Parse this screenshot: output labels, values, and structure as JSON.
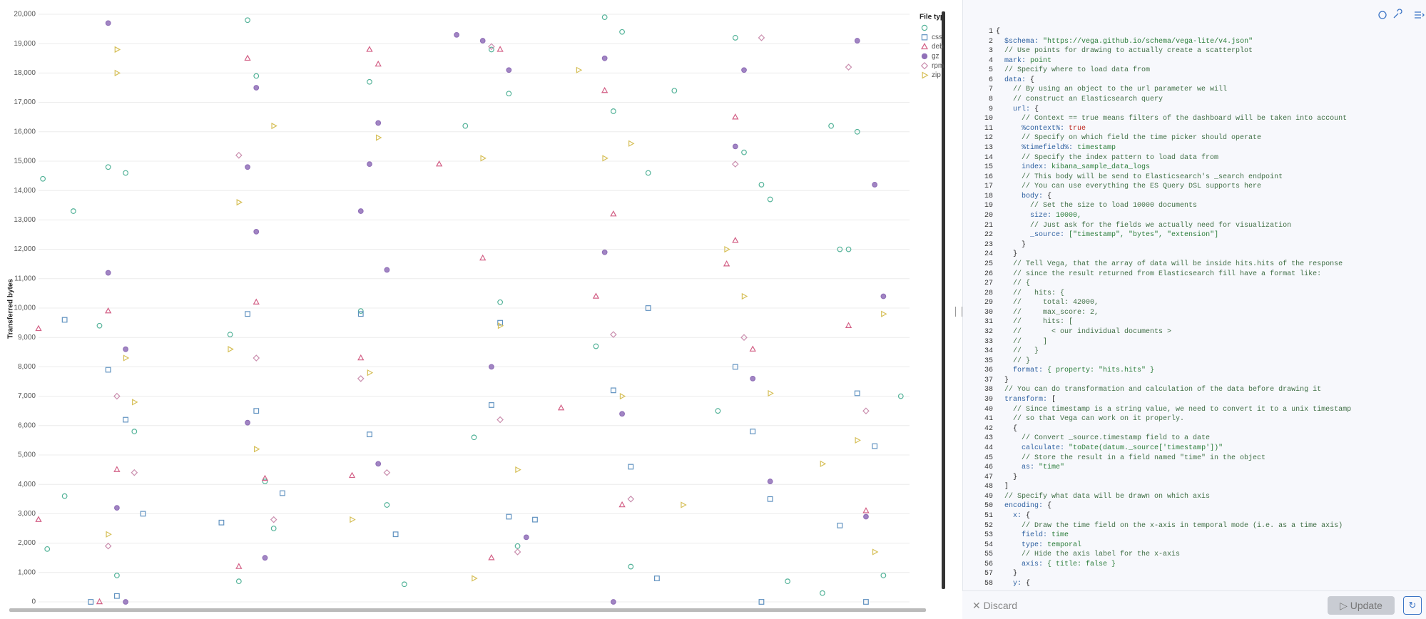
{
  "chart_data": {
    "type": "scatter",
    "y_label": "Transferred bytes",
    "legend_title": "File typ",
    "legend_position": "top-right",
    "grid": true,
    "xlim": [
      0,
      100
    ],
    "ylim": [
      0,
      20000
    ],
    "yticks": [
      0,
      {
        "value": 1000,
        "label": "1,000"
      },
      {
        "value": 2000,
        "label": "2,000"
      },
      {
        "value": 3000,
        "label": "3,000"
      },
      {
        "value": 4000,
        "label": "4,000"
      },
      {
        "value": 5000,
        "label": "5,000"
      },
      {
        "value": 6000,
        "label": "6,000"
      },
      {
        "value": 7000,
        "label": "7,000"
      },
      {
        "value": 8000,
        "label": "8,000"
      },
      {
        "value": 9000,
        "label": "9,000"
      },
      {
        "value": 10000,
        "label": "10,000"
      },
      {
        "value": 11000,
        "label": "11,000"
      },
      {
        "value": 12000,
        "label": "12,000"
      },
      {
        "value": 13000,
        "label": "13,000"
      },
      {
        "value": 14000,
        "label": "14,000"
      },
      {
        "value": 15000,
        "label": "15,000"
      },
      {
        "value": 16000,
        "label": "16,000"
      },
      {
        "value": 17000,
        "label": "17,000"
      },
      {
        "value": 18000,
        "label": "18,000"
      },
      {
        "value": 19000,
        "label": "19,000"
      },
      {
        "value": 20000,
        "label": "20,000"
      }
    ],
    "series": [
      {
        "name": null,
        "color": "#54b399",
        "shape": "circle",
        "filled": false,
        "x": [
          0.5,
          4,
          8,
          10,
          7,
          11,
          3,
          1,
          9,
          24,
          25,
          22,
          26,
          23,
          27,
          38,
          37,
          40,
          42,
          49,
          52,
          54,
          53,
          50,
          55,
          65,
          67,
          66,
          70,
          64,
          68,
          73,
          80,
          81,
          83,
          84,
          78,
          86,
          91,
          94,
          92,
          93,
          99,
          97,
          90
        ],
        "values": [
          14400,
          13300,
          14800,
          14600,
          9400,
          5800,
          3600,
          1800,
          900,
          19800,
          17900,
          9100,
          4100,
          700,
          2500,
          17700,
          9900,
          3300,
          600,
          16200,
          18800,
          17300,
          10200,
          5600,
          1900,
          19900,
          19400,
          16700,
          14600,
          8700,
          1200,
          17400,
          19200,
          15300,
          14200,
          13700,
          6500,
          700,
          16200,
          16000,
          12000,
          12000,
          7000,
          900,
          300
        ]
      },
      {
        "name": "css",
        "color": "#6092c0",
        "shape": "square",
        "filled": false,
        "x": [
          3,
          8,
          10,
          12,
          9,
          6,
          21,
          24,
          25,
          28,
          37,
          38,
          41,
          52,
          54,
          57,
          53,
          66,
          68,
          70,
          71,
          80,
          82,
          84,
          83,
          92,
          94,
          96,
          95
        ],
        "values": [
          9600,
          7900,
          6200,
          3000,
          200,
          0,
          2700,
          9800,
          6500,
          3700,
          9800,
          5700,
          2300,
          6700,
          2900,
          2800,
          9500,
          7200,
          4600,
          10000,
          800,
          8000,
          5800,
          3500,
          0,
          2600,
          7100,
          5300,
          0
        ]
      },
      {
        "name": "deb",
        "color": "#d36086",
        "shape": "triangle-up",
        "filled": false,
        "x": [
          0,
          0,
          8,
          9,
          7,
          24,
          25,
          26,
          23,
          38,
          39,
          37,
          36,
          46,
          51,
          53,
          52,
          60,
          65,
          66,
          64,
          67,
          80,
          80,
          79,
          82,
          93,
          95
        ],
        "values": [
          9300,
          2800,
          9900,
          4500,
          0,
          18500,
          10200,
          4200,
          1200,
          18800,
          18300,
          8300,
          4300,
          14900,
          11700,
          18800,
          1500,
          6600,
          17400,
          13200,
          10400,
          3300,
          16500,
          12300,
          11500,
          8600,
          9400,
          3100
        ]
      },
      {
        "name": "gz",
        "color": "#9170b8",
        "shape": "circle",
        "filled": true,
        "x": [
          8,
          8,
          10,
          9,
          10,
          24,
          25,
          25,
          24,
          26,
          38,
          37,
          39,
          40,
          39,
          48,
          51,
          54,
          52,
          56,
          65,
          65,
          67,
          66,
          80,
          81,
          82,
          84,
          94,
          96,
          97,
          95
        ],
        "values": [
          19700,
          11200,
          8600,
          3200,
          0,
          14800,
          17500,
          12600,
          6100,
          1500,
          14900,
          13300,
          16300,
          11300,
          4700,
          19300,
          19100,
          18100,
          8000,
          2200,
          18500,
          11900,
          6400,
          0,
          15500,
          18100,
          7600,
          4100,
          19100,
          14200,
          10400,
          2900
        ]
      },
      {
        "name": "rpm",
        "color": "#ca8eae",
        "shape": "diamond",
        "filled": false,
        "x": [
          9,
          11,
          8,
          23,
          25,
          27,
          37,
          40,
          52,
          53,
          55,
          66,
          68,
          80,
          83,
          81,
          93,
          95
        ],
        "values": [
          7000,
          4400,
          1900,
          15200,
          8300,
          2800,
          7600,
          4400,
          18900,
          6200,
          1700,
          9100,
          3500,
          14900,
          19200,
          9000,
          18200,
          6500
        ]
      },
      {
        "name": "zip",
        "color": "#d6bf57",
        "shape": "triangle-right",
        "filled": false,
        "x": [
          9,
          9,
          10,
          8,
          11,
          23,
          27,
          25,
          22,
          39,
          38,
          36,
          51,
          50,
          53,
          55,
          62,
          65,
          68,
          67,
          74,
          79,
          81,
          84,
          90,
          94,
          97,
          96
        ],
        "values": [
          18800,
          18000,
          8300,
          2300,
          6800,
          13600,
          16200,
          5200,
          8600,
          15800,
          7800,
          2800,
          15100,
          800,
          9400,
          4500,
          18100,
          15100,
          15600,
          7000,
          3300,
          12000,
          10400,
          7100,
          4700,
          5500,
          9800,
          1700
        ]
      }
    ]
  },
  "editor": {
    "lines": [
      {
        "num": "1",
        "text": "{"
      },
      {
        "num": "2",
        "text": "  $schema: \"https://vega.github.io/schema/vega-lite/v4.json\""
      },
      {
        "num": "3",
        "text": "  // Use points for drawing to actually create a scatterplot"
      },
      {
        "num": "4",
        "text": "  mark: point"
      },
      {
        "num": "5",
        "text": "  // Specify where to load data from"
      },
      {
        "num": "6",
        "text": "  data: {"
      },
      {
        "num": "7",
        "text": "    // By using an object to the url parameter we will"
      },
      {
        "num": "8",
        "text": "    // construct an Elasticsearch query"
      },
      {
        "num": "9",
        "text": "    url: {"
      },
      {
        "num": "10",
        "text": "      // Context == true means filters of the dashboard will be taken into account"
      },
      {
        "num": "11",
        "text": "      %context%: true"
      },
      {
        "num": "12",
        "text": "      // Specify on which field the time picker should operate"
      },
      {
        "num": "13",
        "text": "      %timefield%: timestamp"
      },
      {
        "num": "14",
        "text": "      // Specify the index pattern to load data from"
      },
      {
        "num": "15",
        "text": "      index: kibana_sample_data_logs"
      },
      {
        "num": "16",
        "text": "      // This body will be send to Elasticsearch's _search endpoint"
      },
      {
        "num": "17",
        "text": "      // You can use everything the ES Query DSL supports here"
      },
      {
        "num": "18",
        "text": "      body: {"
      },
      {
        "num": "19",
        "text": "        // Set the size to load 10000 documents"
      },
      {
        "num": "20",
        "text": "        size: 10000,"
      },
      {
        "num": "21",
        "text": "        // Just ask for the fields we actually need for visualization"
      },
      {
        "num": "22",
        "text": "        _source: [\"timestamp\", \"bytes\", \"extension\"]"
      },
      {
        "num": "23",
        "text": "      }"
      },
      {
        "num": "24",
        "text": "    }"
      },
      {
        "num": "25",
        "text": "    // Tell Vega, that the array of data will be inside hits.hits of the response"
      },
      {
        "num": "26",
        "text": "    // since the result returned from Elasticsearch fill have a format like:"
      },
      {
        "num": "27",
        "text": "    // {"
      },
      {
        "num": "28",
        "text": "    //   hits: {"
      },
      {
        "num": "29",
        "text": "    //     total: 42000,"
      },
      {
        "num": "30",
        "text": "    //     max_score: 2,"
      },
      {
        "num": "31",
        "text": "    //     hits: ["
      },
      {
        "num": "32",
        "text": "    //       < our individual documents >"
      },
      {
        "num": "33",
        "text": "    //     ]"
      },
      {
        "num": "34",
        "text": "    //   }"
      },
      {
        "num": "35",
        "text": "    // }"
      },
      {
        "num": "36",
        "text": "    format: { property: \"hits.hits\" }"
      },
      {
        "num": "37",
        "text": "  }"
      },
      {
        "num": "38",
        "text": "  // You can do transformation and calculation of the data before drawing it"
      },
      {
        "num": "39",
        "text": "  transform: ["
      },
      {
        "num": "40",
        "text": "    // Since timestamp is a string value, we need to convert it to a unix timestamp"
      },
      {
        "num": "41",
        "text": "    // so that Vega can work on it properly."
      },
      {
        "num": "42",
        "text": "    {"
      },
      {
        "num": "43",
        "text": "      // Convert _source.timestamp field to a date"
      },
      {
        "num": "44",
        "text": "      calculate: \"toDate(datum._source['timestamp'])\""
      },
      {
        "num": "45",
        "text": "      // Store the result in a field named \"time\" in the object"
      },
      {
        "num": "46",
        "text": "      as: \"time\""
      },
      {
        "num": "47",
        "text": "    }"
      },
      {
        "num": "48",
        "text": "  ]"
      },
      {
        "num": "49",
        "text": "  // Specify what data will be drawn on which axis"
      },
      {
        "num": "50",
        "text": "  encoding: {"
      },
      {
        "num": "51",
        "text": "    x: {"
      },
      {
        "num": "52",
        "text": "      // Draw the time field on the x-axis in temporal mode (i.e. as a time axis)"
      },
      {
        "num": "53",
        "text": "      field: time"
      },
      {
        "num": "54",
        "text": "      type: temporal"
      },
      {
        "num": "55",
        "text": "      // Hide the axis label for the x-axis"
      },
      {
        "num": "56",
        "text": "      axis: { title: false }"
      },
      {
        "num": "57",
        "text": "    }"
      },
      {
        "num": "58",
        "text": "    y: {"
      }
    ]
  },
  "footer": {
    "discard": "Discard",
    "update": "Update"
  }
}
